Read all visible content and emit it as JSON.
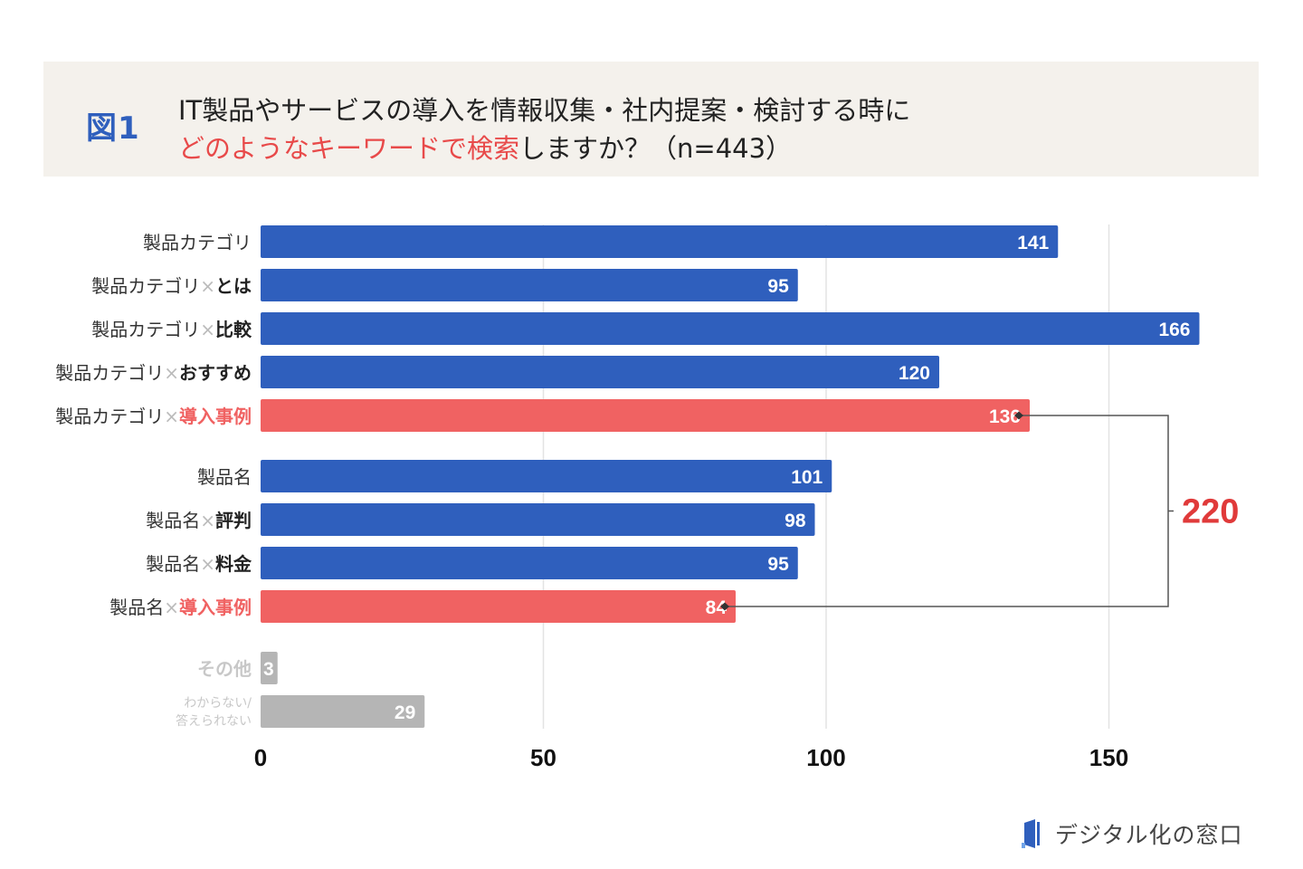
{
  "header": {
    "figure_label": "図1",
    "title_line1": "IT製品やサービスの導入を情報収集・社内提案・検討する時に",
    "title_line2_highlight": "どのようなキーワードで検索",
    "title_line2_rest": "しますか？（n=443）"
  },
  "chart_data": {
    "type": "bar",
    "orientation": "horizontal",
    "xlim": [
      0,
      175
    ],
    "xticks": [
      "0",
      "50",
      "100",
      "150"
    ],
    "grid": true,
    "categories": [
      {
        "base": "製品カテゴリ",
        "sep": "",
        "suffix": "",
        "value": 141,
        "color": "#2f5fbd",
        "suffix_color": "#222222"
      },
      {
        "base": "製品カテゴリ",
        "sep": "×",
        "suffix": "とは",
        "value": 95,
        "color": "#2f5fbd",
        "suffix_color": "#222222"
      },
      {
        "base": "製品カテゴリ",
        "sep": "×",
        "suffix": "比較",
        "value": 166,
        "color": "#2f5fbd",
        "suffix_color": "#222222"
      },
      {
        "base": "製品カテゴリ",
        "sep": "×",
        "suffix": "おすすめ",
        "value": 120,
        "color": "#2f5fbd",
        "suffix_color": "#222222"
      },
      {
        "base": "製品カテゴリ",
        "sep": "×",
        "suffix": "導入事例",
        "value": 136,
        "color": "#f06262",
        "suffix_color": "#f06262"
      },
      {
        "base": "製品名",
        "sep": "",
        "suffix": "",
        "value": 101,
        "color": "#2f5fbd",
        "suffix_color": "#222222"
      },
      {
        "base": "製品名",
        "sep": "×",
        "suffix": "評判",
        "value": 98,
        "color": "#2f5fbd",
        "suffix_color": "#222222"
      },
      {
        "base": "製品名",
        "sep": "×",
        "suffix": "料金",
        "value": 95,
        "color": "#2f5fbd",
        "suffix_color": "#222222"
      },
      {
        "base": "製品名",
        "sep": "×",
        "suffix": "導入事例",
        "value": 84,
        "color": "#f06262",
        "suffix_color": "#f06262"
      },
      {
        "base": "その他",
        "sep": "",
        "suffix": "",
        "value": 3,
        "color": "#b5b5b5",
        "base_color": "#c8c8c8"
      },
      {
        "base": "わからない/",
        "base2": "答えられない",
        "sep": "",
        "suffix": "",
        "value": 29,
        "color": "#b5b5b5",
        "base_color": "#c8c8c8"
      }
    ],
    "annotation": {
      "label": "220",
      "color": "#e03a3a",
      "connects": [
        "製品カテゴリ×導入事例",
        "製品名×導入事例"
      ]
    }
  },
  "footer": {
    "logo_text": "デジタル化の窓口"
  }
}
